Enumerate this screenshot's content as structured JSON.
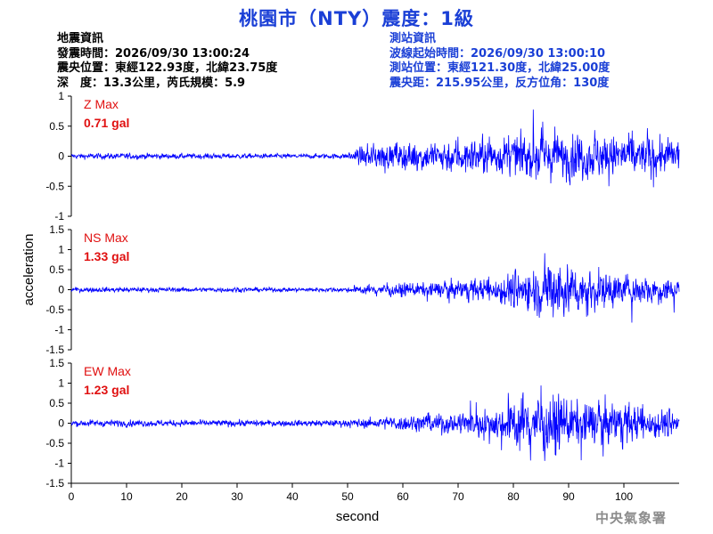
{
  "title": "桃園市（NTY）震度：1級",
  "quake_info": {
    "heading": "地震資訊",
    "origin_time": "發震時間：2026/09/30 13:00:24",
    "epicenter": "震央位置：東經122.93度，北緯23.75度",
    "depth_magnitude": "深　度：13.3公里，芮氏規模：5.9"
  },
  "station_info": {
    "heading": "測站資訊",
    "wave_start": "波線起始時間：2026/09/30 13:00:10",
    "station_location": "測站位置：東經121.30度，北緯25.00度",
    "distance_azimuth": "震央距：215.95公里，反方位角：130度"
  },
  "credit": "中央氣象署",
  "chart_data": {
    "type": "line",
    "xlabel": "second",
    "ylabel": "acceleration",
    "xlim": [
      0,
      110
    ],
    "x_ticks": [
      0,
      10,
      20,
      30,
      40,
      50,
      60,
      70,
      80,
      90,
      100
    ],
    "line_color": "#0000ff",
    "label_color": "#e01010",
    "series": [
      {
        "name": "Z Max",
        "max_label": "Z Max",
        "max_value": "0.71 gal",
        "ylim": [
          -1,
          1
        ],
        "y_ticks": [
          1,
          0.5,
          0,
          -0.5,
          -1
        ],
        "envelope": [
          [
            0,
            0.07
          ],
          [
            10,
            0.08
          ],
          [
            20,
            0.07
          ],
          [
            30,
            0.07
          ],
          [
            40,
            0.06
          ],
          [
            50,
            0.07
          ],
          [
            53,
            0.28
          ],
          [
            60,
            0.35
          ],
          [
            70,
            0.45
          ],
          [
            80,
            0.5
          ],
          [
            85,
            0.62
          ],
          [
            90,
            0.6
          ],
          [
            100,
            0.55
          ],
          [
            110,
            0.45
          ]
        ]
      },
      {
        "name": "NS Max",
        "max_label": "NS Max",
        "max_value": "1.33 gal",
        "ylim": [
          -1.5,
          1.5
        ],
        "y_ticks": [
          1.5,
          1,
          0.5,
          0,
          -0.5,
          -1,
          -1.5
        ],
        "envelope": [
          [
            0,
            0.1
          ],
          [
            10,
            0.1
          ],
          [
            20,
            0.09
          ],
          [
            30,
            0.1
          ],
          [
            40,
            0.08
          ],
          [
            50,
            0.1
          ],
          [
            55,
            0.2
          ],
          [
            65,
            0.3
          ],
          [
            75,
            0.45
          ],
          [
            80,
            0.75
          ],
          [
            85,
            1.0
          ],
          [
            88,
            1.25
          ],
          [
            92,
            0.9
          ],
          [
            100,
            0.6
          ],
          [
            110,
            0.5
          ]
        ]
      },
      {
        "name": "EW Max",
        "max_label": "EW Max",
        "max_value": "1.23 gal",
        "ylim": [
          -1.5,
          1.5
        ],
        "y_ticks": [
          1.5,
          1,
          0.5,
          0,
          -0.5,
          -1,
          -1.5
        ],
        "envelope": [
          [
            0,
            0.13
          ],
          [
            10,
            0.14
          ],
          [
            20,
            0.13
          ],
          [
            30,
            0.13
          ],
          [
            40,
            0.12
          ],
          [
            50,
            0.14
          ],
          [
            60,
            0.3
          ],
          [
            70,
            0.45
          ],
          [
            78,
            0.7
          ],
          [
            82,
            1.1
          ],
          [
            86,
            1.15
          ],
          [
            90,
            0.95
          ],
          [
            100,
            0.8
          ],
          [
            110,
            0.5
          ]
        ]
      }
    ]
  }
}
